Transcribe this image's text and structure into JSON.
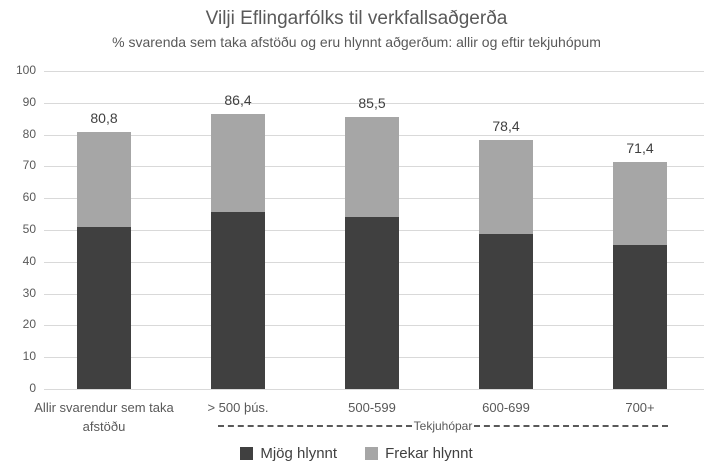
{
  "colors": {
    "series_dark": "#404040",
    "series_gray": "#a6a6a6",
    "gridline": "#d9d9d9",
    "axis_text": "#595959",
    "label_text": "#404040"
  },
  "legend": {
    "items": [
      {
        "label": "Mjög hlynnt",
        "color": "#404040"
      },
      {
        "label": "Frekar hlynnt",
        "color": "#a6a6a6"
      }
    ]
  },
  "x_axis": {
    "group_label": "Tekjuhópar"
  },
  "chart_data": {
    "type": "bar",
    "stacked": true,
    "title": "Vilji Eflingarfólks til verkfallsaðgerða",
    "subtitle": "% svarenda sem taka afstöðu og eru hlynnt aðgerðum: allir og eftir tekjuhópum",
    "categories": [
      "Allir svarendur sem taka afstöðu",
      "> 500 þús.",
      "500-599",
      "600-699",
      "700+"
    ],
    "series": [
      {
        "name": "Mjög hlynnt",
        "color": "#404040",
        "values": [
          51.0,
          55.6,
          54.2,
          48.6,
          45.2
        ]
      },
      {
        "name": "Frekar hlynnt",
        "color": "#a6a6a6",
        "values": [
          29.8,
          30.8,
          31.3,
          29.8,
          26.2
        ]
      }
    ],
    "totals": [
      80.8,
      86.4,
      85.5,
      78.4,
      71.4
    ],
    "total_labels": [
      "80,8",
      "86,4",
      "85,5",
      "78,4",
      "71,4"
    ],
    "ylim": [
      0,
      100
    ],
    "yticks": [
      0,
      10,
      20,
      30,
      40,
      50,
      60,
      70,
      80,
      90,
      100
    ],
    "grid": true,
    "legend_position": "bottom",
    "x_group_label": "Tekjuhópar",
    "x_group_span": [
      "> 500 þús.",
      "500-599",
      "600-699",
      "700+"
    ]
  }
}
